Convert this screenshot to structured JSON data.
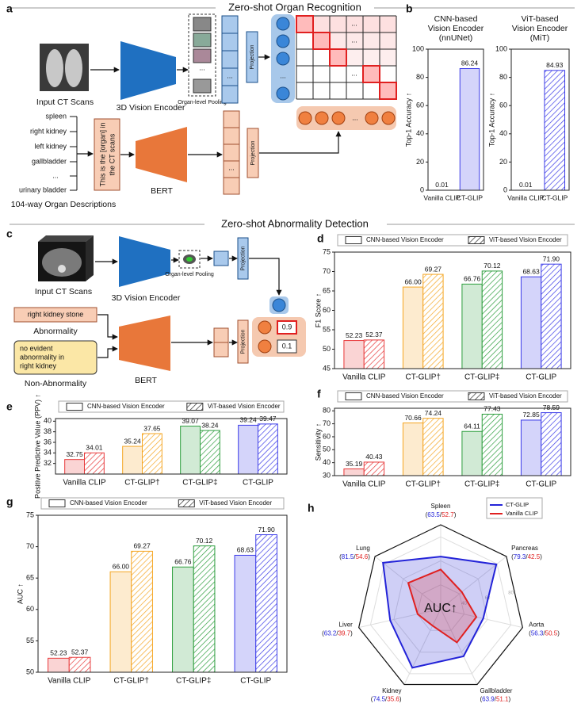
{
  "section_titles": [
    "Zero-shot Organ Recognition",
    "Zero-shot Abnormality Detection"
  ],
  "panel_labels": [
    "a",
    "b",
    "c",
    "d",
    "e",
    "f",
    "g",
    "h"
  ],
  "ellipsis": "...",
  "diagram_a": {
    "input": "Input CT Scans",
    "encoder": "3D Vision Encoder",
    "pooling": "Organ-level Pooling",
    "projection": "Projection",
    "organs": [
      "spleen",
      "right kidney",
      "left kidney",
      "gallbladder",
      "...",
      "urinary bladder"
    ],
    "prompt_lines": [
      "This is the [organ] in",
      "the CT scans"
    ],
    "text_encoder": "BERT",
    "caption": "104-way Organ Descriptions"
  },
  "diagram_c": {
    "input": "Input CT Scans",
    "encoder": "3D Vision Encoder",
    "pooling": "Organ-level Pooling",
    "projection": "Projection",
    "abnormality_text": "right kidney stone",
    "abnormality": "Abnormality",
    "normal_lines": [
      "no evident",
      "abnormality in",
      "right kidney"
    ],
    "normal": "Non-Abnormality",
    "text_encoder": "BERT",
    "scores": [
      0.9,
      0.1
    ]
  },
  "chart_data": [
    {
      "type": "bar",
      "title": [
        "CNN-based",
        "Vision Encoder",
        "(nnUNet)"
      ],
      "ylabel": "Top-1 Accuracy ↑",
      "categories": [
        "Vanilla CLIP",
        "CT-GLIP"
      ],
      "values": [
        0.01,
        86.24
      ],
      "color": "#3b3be8",
      "hatch": false,
      "ylim": [
        0,
        100
      ],
      "yticks": [
        0,
        20,
        40,
        60,
        80,
        100
      ]
    },
    {
      "type": "bar",
      "title": [
        "ViT-based",
        "Vision Encoder",
        "(MiT)"
      ],
      "ylabel": "Top-1 Accuracy ↑",
      "categories": [
        "Vanilla CLIP",
        "CT-GLIP"
      ],
      "values": [
        0.01,
        84.93
      ],
      "color": "#3b3be8",
      "hatch": true,
      "ylim": [
        0,
        100
      ],
      "yticks": [
        0,
        20,
        40,
        60,
        80,
        100
      ]
    },
    {
      "type": "grouped_bar",
      "ylabel": "F1 Score ↑",
      "categories": [
        "Vanilla CLIP",
        "CT-GLIP†",
        "CT-GLIP‡",
        "CT-GLIP"
      ],
      "category_colors": [
        "#e8393a",
        "#f5a623",
        "#2e9e3e",
        "#3b3be8"
      ],
      "legend": "top",
      "series": [
        {
          "name": "CNN-based Vision Encoder",
          "hatch": false,
          "values": [
            52.23,
            66.0,
            66.76,
            68.63
          ],
          "value_labels": [
            "52.23",
            "66.00",
            "66.76",
            "68.63"
          ]
        },
        {
          "name": "ViT-based Vision Encoder",
          "hatch": true,
          "values": [
            52.37,
            69.27,
            70.12,
            71.9
          ],
          "value_labels": [
            "52.37",
            "69.27",
            "70.12",
            "71.90"
          ]
        }
      ],
      "ylim": [
        45,
        75
      ],
      "yticks": [
        45,
        50,
        55,
        60,
        65,
        70,
        75
      ]
    },
    {
      "type": "grouped_bar",
      "ylabel": "Positive Predictive Value (PPV) ↑",
      "categories": [
        "Vanilla CLIP",
        "CT-GLIP†",
        "CT-GLIP‡",
        "CT-GLIP"
      ],
      "category_colors": [
        "#e8393a",
        "#f5a623",
        "#2e9e3e",
        "#3b3be8"
      ],
      "legend": "top",
      "series": [
        {
          "name": "CNN-based Vision Encoder",
          "hatch": false,
          "values": [
            32.75,
            35.24,
            39.07,
            39.24
          ]
        },
        {
          "name": "ViT-based Vision Encoder",
          "hatch": true,
          "values": [
            34.01,
            37.65,
            38.24,
            39.47
          ]
        }
      ],
      "ylim": [
        30,
        40.5
      ],
      "yticks": [
        32,
        34,
        36,
        38,
        40
      ]
    },
    {
      "type": "grouped_bar",
      "ylabel": "Sensitivity ↑",
      "categories": [
        "Vanilla CLIP",
        "CT-GLIP†",
        "CT-GLIP‡",
        "CT-GLIP"
      ],
      "category_colors": [
        "#e8393a",
        "#f5a623",
        "#2e9e3e",
        "#3b3be8"
      ],
      "legend": "top",
      "series": [
        {
          "name": "CNN-based Vision Encoder",
          "hatch": false,
          "values": [
            35.19,
            70.66,
            64.11,
            72.85
          ]
        },
        {
          "name": "ViT-based Vision Encoder",
          "hatch": true,
          "values": [
            40.43,
            74.24,
            77.43,
            78.59
          ]
        }
      ],
      "ylim": [
        30,
        82
      ],
      "yticks": [
        30,
        40,
        50,
        60,
        70,
        80
      ]
    },
    {
      "type": "grouped_bar",
      "ylabel": "AUC ↑",
      "categories": [
        "Vanilla CLIP",
        "CT-GLIP†",
        "CT-GLIP‡",
        "CT-GLIP"
      ],
      "category_colors": [
        "#e8393a",
        "#f5a623",
        "#2e9e3e",
        "#3b3be8"
      ],
      "legend": "top",
      "series": [
        {
          "name": "CNN-based Vision Encoder",
          "hatch": false,
          "values": [
            52.23,
            66.0,
            66.76,
            68.63
          ],
          "value_labels": [
            "52.23",
            "66.00",
            "66.76",
            "68.63"
          ]
        },
        {
          "name": "ViT-based Vision Encoder",
          "hatch": true,
          "values": [
            52.37,
            69.27,
            70.12,
            71.9
          ],
          "value_labels": [
            "52.37",
            "69.27",
            "70.12",
            "71.90"
          ]
        }
      ],
      "ylim": [
        50,
        75
      ],
      "yticks": [
        50,
        55,
        60,
        65,
        70,
        75
      ]
    },
    {
      "type": "radar",
      "center_label": "AUC↑",
      "categories": [
        "Spleen",
        "Pancreas",
        "Aorta",
        "Gallbladder",
        "Kidney",
        "Liver",
        "Lung"
      ],
      "series": [
        {
          "name": "CT-GLIP",
          "color": "#2323d8",
          "values": [
            63.5,
            79.3,
            56.3,
            63.9,
            74.5,
            63.2,
            81.5
          ]
        },
        {
          "name": "Vanilla CLIP",
          "color": "#e02020",
          "values": [
            52.7,
            42.5,
            50.5,
            51.1,
            35.6,
            39.7,
            54.6
          ]
        }
      ],
      "value_label_delimiters": [
        "(",
        "/",
        ")"
      ],
      "rlim": [
        20,
        90
      ],
      "rticks": [
        40,
        60,
        80
      ],
      "legend": "upper right"
    }
  ]
}
